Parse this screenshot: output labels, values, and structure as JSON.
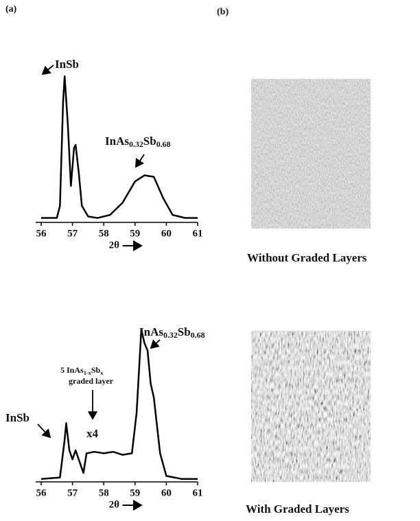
{
  "panel_labels": [
    "(a)",
    "(b)"
  ],
  "images": [
    {
      "caption": "Without Graded Layers"
    },
    {
      "caption": "With Graded Layers"
    }
  ],
  "chart_data": [
    {
      "type": "line",
      "xlabel": "2θ",
      "xlim": [
        56,
        61
      ],
      "xticks": [
        56,
        57,
        58,
        59,
        60,
        61
      ],
      "ylim": [
        0,
        100
      ],
      "color": "#000",
      "series": [
        {
          "x": [
            56,
            56.5,
            56.6,
            56.7,
            56.75,
            56.85,
            56.95,
            57.05,
            57.1,
            57.2,
            57.3,
            57.5,
            57.8,
            58.2,
            58.6,
            59,
            59.3,
            59.6,
            59.9,
            60.2,
            60.6,
            61
          ],
          "values": [
            2,
            2,
            10,
            78,
            95,
            64,
            23,
            48,
            50,
            32,
            10,
            3,
            2,
            4,
            12,
            26,
            30,
            29,
            15,
            4,
            2,
            2
          ]
        }
      ],
      "annotations": [
        {
          "parts": [
            "InSb"
          ]
        },
        {
          "parts": [
            "InAs",
            "0.32",
            "Sb",
            "0.68"
          ]
        }
      ]
    },
    {
      "type": "line",
      "xlabel": "2θ",
      "xlim": [
        56,
        61
      ],
      "xticks": [
        56,
        57,
        58,
        59,
        60,
        61
      ],
      "ylim": [
        0,
        100
      ],
      "color": "#000",
      "series": [
        {
          "x": [
            56,
            56.6,
            56.75,
            56.8,
            56.9,
            57,
            57.1,
            57.25,
            57.35,
            57.45,
            57.7,
            58,
            58.3,
            58.6,
            58.9,
            59.05,
            59.2,
            59.3,
            59.4,
            59.5,
            59.6,
            59.8,
            60,
            60.5,
            61
          ],
          "values": [
            1,
            2,
            27,
            38,
            20,
            14,
            20,
            11,
            5,
            18,
            19,
            18,
            19,
            17,
            18,
            45,
            100,
            91,
            86,
            64,
            55,
            18,
            3,
            1,
            1
          ]
        }
      ],
      "annotations": [
        {
          "parts": [
            "InSb"
          ]
        },
        {
          "parts": [
            "InAs",
            "0.32",
            "Sb",
            "0.68"
          ]
        },
        {
          "parts": [
            "5 InAs",
            "1-x",
            "Sb",
            "x"
          ]
        },
        {
          "parts": [
            "graded layer"
          ]
        },
        {
          "parts": [
            "x4"
          ]
        }
      ]
    }
  ]
}
